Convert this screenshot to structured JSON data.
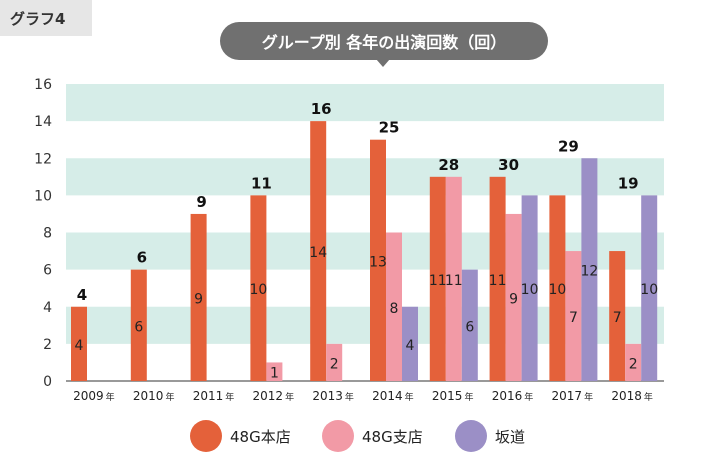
{
  "tag": "グラフ4",
  "title": "グループ別 各年の出演回数（回）",
  "colors": {
    "honten": "#e4613a",
    "shiten": "#f29aa6",
    "sakamichi": "#9b8fc6",
    "band": "#d6ede8",
    "axis": "#333333"
  },
  "chart_data": {
    "type": "bar",
    "title": "グループ別 各年の出演回数（回）",
    "categories": [
      "2009",
      "2010",
      "2011",
      "2012",
      "2013",
      "2014",
      "2015",
      "2016",
      "2017",
      "2018"
    ],
    "category_suffix": "年",
    "ylim": [
      0,
      16
    ],
    "yticks": [
      0,
      2,
      4,
      6,
      8,
      10,
      12,
      14,
      16
    ],
    "series": [
      {
        "name": "48G本店",
        "color": "#e4613a",
        "values": [
          4,
          6,
          9,
          10,
          14,
          13,
          11,
          11,
          10,
          7
        ]
      },
      {
        "name": "48G支店",
        "color": "#f29aa6",
        "values": [
          null,
          null,
          null,
          1,
          2,
          8,
          11,
          9,
          7,
          2
        ]
      },
      {
        "name": "坂道",
        "color": "#9b8fc6",
        "values": [
          null,
          null,
          null,
          null,
          null,
          4,
          6,
          10,
          12,
          10
        ]
      }
    ],
    "totals": [
      4,
      6,
      9,
      11,
      16,
      25,
      28,
      30,
      29,
      19
    ],
    "legend_position": "bottom",
    "grid": "alternating bands"
  },
  "legend": [
    {
      "label": "48G本店",
      "color": "#e4613a"
    },
    {
      "label": "48G支店",
      "color": "#f29aa6"
    },
    {
      "label": "坂道",
      "color": "#9b8fc6"
    }
  ]
}
